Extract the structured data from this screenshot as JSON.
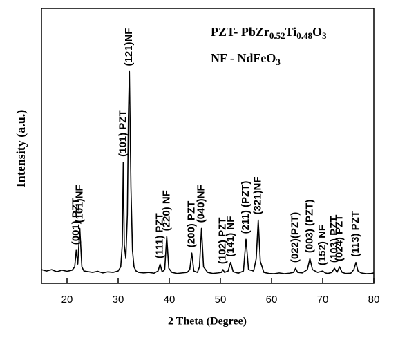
{
  "chart_data": {
    "type": "line",
    "xlabel": "2 Theta (Degree)",
    "ylabel": "Intensity (a.u.)",
    "color": "#000000",
    "xlim": [
      15,
      80
    ],
    "xticks": [
      20,
      30,
      40,
      50,
      60,
      70,
      80
    ],
    "ylim": [
      0,
      100
    ],
    "x": [
      15,
      16,
      17,
      18,
      19,
      20,
      20.5,
      21,
      21.5,
      21.8,
      22.1,
      22.5,
      22.9,
      23.3,
      24,
      25,
      26,
      27,
      28,
      29,
      30,
      30.5,
      30.8,
      31.0,
      31.2,
      31.5,
      31.8,
      32.0,
      32.2,
      32.5,
      32.8,
      33.1,
      33.5,
      34,
      35,
      36,
      37,
      37.8,
      38.2,
      38.6,
      39.1,
      39.5,
      39.9,
      40.5,
      41.5,
      42.5,
      43.5,
      44.0,
      44.4,
      44.8,
      45.5,
      45.9,
      46.3,
      46.7,
      47.5,
      48.5,
      49.5,
      50.2,
      50.5,
      50.8,
      51.5,
      52.0,
      52.5,
      53.5,
      54.5,
      55.0,
      55.5,
      56.5,
      57.0,
      57.4,
      57.8,
      58.5,
      59.5,
      60.5,
      61.5,
      62.5,
      63.5,
      64.3,
      64.7,
      65.1,
      66,
      67,
      67.5,
      68,
      69,
      70,
      70.5,
      71,
      71.8,
      72.3,
      72.8,
      73.3,
      73.8,
      74.5,
      75.5,
      76.1,
      76.5,
      76.9,
      77.5,
      78.5,
      79.5,
      80
    ],
    "values": [
      5,
      4.5,
      5,
      4.2,
      4.8,
      4.4,
      4.6,
      4.8,
      6,
      12,
      7,
      20,
      6,
      4.5,
      4.3,
      4,
      4.4,
      3.8,
      4.2,
      4,
      4.5,
      6,
      14,
      44,
      14,
      9,
      25,
      60,
      77,
      35,
      12,
      6,
      4.5,
      4,
      3.8,
      4,
      3.7,
      4.5,
      7,
      4.2,
      5,
      17,
      5.5,
      4,
      3.6,
      3.8,
      4,
      5,
      11,
      4.5,
      4,
      6,
      20,
      6,
      4,
      3.6,
      3.8,
      4,
      5,
      4,
      4.5,
      7.6,
      4.2,
      3.7,
      4.5,
      16,
      5,
      4.5,
      9,
      23,
      8,
      4,
      3.6,
      3.5,
      3.8,
      3.5,
      3.7,
      4,
      5.5,
      4,
      3.8,
      5,
      9,
      5,
      4,
      4.5,
      3.8,
      3.6,
      4,
      5.5,
      4,
      6,
      4,
      3.6,
      3.7,
      5,
      7.6,
      4.5,
      3.8,
      3.5,
      3.6,
      3.8
    ],
    "annotations": [
      {
        "text": "(001) PZT",
        "x": 21.8
      },
      {
        "text": "(101)NF",
        "x": 22.5
      },
      {
        "text": "(101) PZT",
        "x": 31.0
      },
      {
        "text": "(121)NF",
        "x": 32.2
      },
      {
        "text": "(111) PZT",
        "x": 38.2
      },
      {
        "text": "(220) NF",
        "x": 39.5
      },
      {
        "text": "(200) PZT",
        "x": 44.4
      },
      {
        "text": "(040)NF",
        "x": 46.3
      },
      {
        "text": "(102) PZT",
        "x": 50.5
      },
      {
        "text": "(141) NF",
        "x": 52.0
      },
      {
        "text": "(211) (PZT)",
        "x": 55.0
      },
      {
        "text": "(321)NF",
        "x": 57.4
      },
      {
        "text": "(022)(PZT)",
        "x": 64.7
      },
      {
        "text": "(003) (PZT)",
        "x": 67.5
      },
      {
        "text": "(152) NF",
        "x": 70
      },
      {
        "text": "(103) PZT",
        "x": 72.3
      },
      {
        "text": "(024) PZT",
        "x": 73.3
      },
      {
        "text": "(113) PZT",
        "x": 76.5
      }
    ],
    "legend_lines": [
      [
        "PZT- PbZr",
        "0.52",
        "Ti",
        "0.48",
        "O",
        "3"
      ],
      [
        "NF - NdFeO",
        "3"
      ]
    ]
  }
}
